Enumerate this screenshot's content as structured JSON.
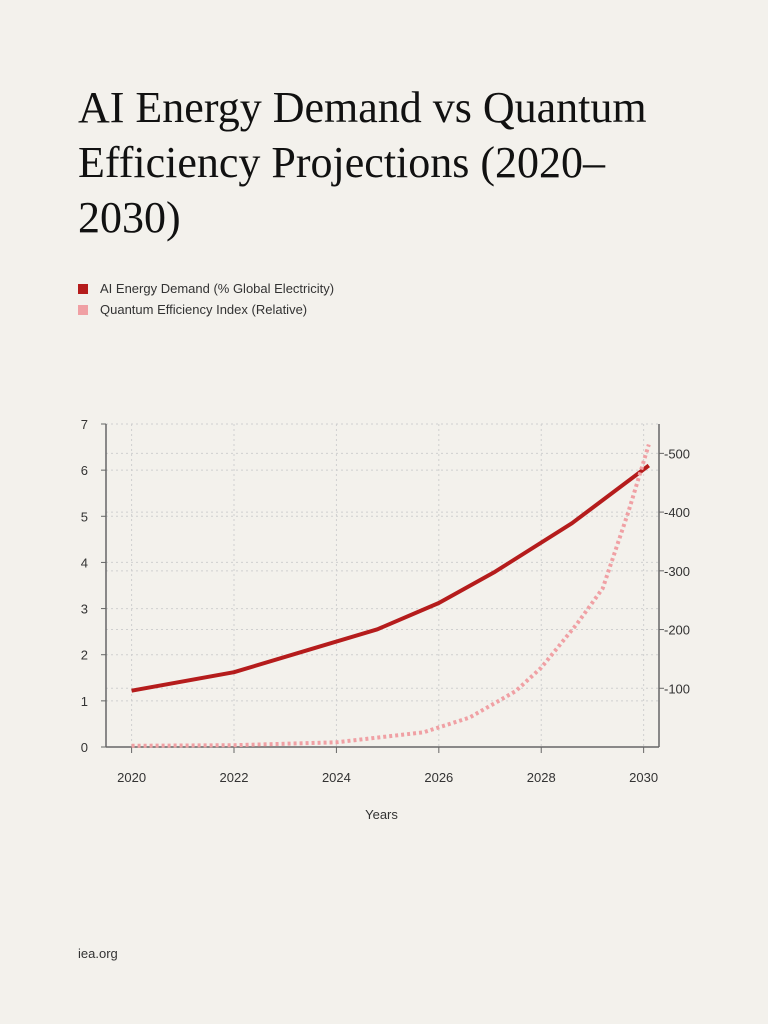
{
  "title": "AI Energy Demand vs Quantum Efficiency Projections (2020–2030)",
  "source": "iea.org",
  "colors": {
    "series1": "#b51c1c",
    "series2": "#f0a0a4",
    "grid": "#cfcfcf",
    "axis": "#666666",
    "background": "#f3f1ec"
  },
  "chart_data": {
    "type": "line",
    "xlabel": "Years",
    "ylabel": "",
    "ylabel_right": "",
    "xlim": [
      2019.5,
      2030.3
    ],
    "ylim": [
      0,
      7
    ],
    "ylim_right": [
      0,
      550
    ],
    "x_ticks": [
      2020,
      2022,
      2024,
      2026,
      2028,
      2030
    ],
    "y_ticks": [
      0,
      1,
      2,
      3,
      4,
      5,
      6,
      7
    ],
    "y_ticks_right": [
      100,
      200,
      300,
      400,
      500
    ],
    "y_ticks_right_labels": [
      "-100",
      "-200",
      "-300",
      "-400",
      "-500"
    ],
    "grid": true,
    "legend_position": "top-left",
    "series": [
      {
        "name": "AI Energy Demand (% Global Electricity)",
        "axis": "left",
        "style": "solid",
        "x": [
          2020,
          2022,
          2023.5,
          2024.8,
          2026,
          2027.1,
          2028.6,
          2030.1
        ],
        "y": [
          1.22,
          1.62,
          2.12,
          2.55,
          3.12,
          3.8,
          4.85,
          6.1
        ]
      },
      {
        "name": "Quantum Efficiency Index (Relative)",
        "axis": "right",
        "style": "dotted",
        "x": [
          2020,
          2022,
          2024,
          2025.7,
          2026.6,
          2027.5,
          2028,
          2028.7,
          2029.2,
          2029.7,
          2030.1
        ],
        "y": [
          2,
          3,
          8,
          25,
          50,
          95,
          135,
          210,
          270,
          400,
          515
        ]
      }
    ]
  }
}
